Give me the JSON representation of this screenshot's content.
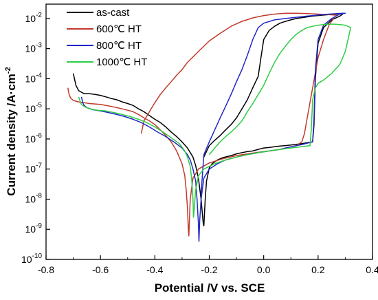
{
  "chart_data": {
    "type": "line",
    "title": "",
    "xlabel": "Potential /V vs. SCE",
    "ylabel": "Current density /A·cm",
    "ylabel_sup": "-2",
    "xlim": [
      -0.8,
      0.4
    ],
    "ylim": [
      1e-10,
      0.03
    ],
    "y_scale": "log",
    "grid": false,
    "legend_position": "top-left",
    "x_ticks": [
      "-0.8",
      "-0.6",
      "-0.4",
      "-0.2",
      "0.0",
      "0.2",
      "0.4"
    ],
    "x_tick_values": [
      -0.8,
      -0.6,
      -0.4,
      -0.2,
      0.0,
      0.2,
      0.4
    ],
    "y_ticks": [
      {
        "base": "10",
        "exp": "-10",
        "value": 1e-10
      },
      {
        "base": "10",
        "exp": "-9",
        "value": 1e-09
      },
      {
        "base": "10",
        "exp": "-8",
        "value": 1e-08
      },
      {
        "base": "10",
        "exp": "-7",
        "value": 1e-07
      },
      {
        "base": "10",
        "exp": "-6",
        "value": 1e-06
      },
      {
        "base": "10",
        "exp": "-5",
        "value": 1e-05
      },
      {
        "base": "10",
        "exp": "-4",
        "value": 0.0001
      },
      {
        "base": "10",
        "exp": "-3",
        "value": 0.001
      },
      {
        "base": "10",
        "exp": "-2",
        "value": 0.01
      }
    ],
    "series": [
      {
        "name": "as-cast",
        "color": "#000000",
        "x": [
          -0.7,
          -0.69,
          -0.68,
          -0.66,
          -0.64,
          -0.62,
          -0.6,
          -0.58,
          -0.56,
          -0.54,
          -0.52,
          -0.5,
          -0.48,
          -0.46,
          -0.44,
          -0.42,
          -0.4,
          -0.38,
          -0.36,
          -0.34,
          -0.32,
          -0.3,
          -0.28,
          -0.26,
          -0.25,
          -0.24,
          -0.23,
          -0.225,
          -0.222,
          -0.22,
          -0.218,
          -0.215,
          -0.21,
          -0.2,
          -0.19,
          -0.17,
          -0.15,
          -0.12,
          -0.1,
          -0.08,
          -0.06,
          -0.04,
          -0.02,
          0.0,
          0.02,
          0.04,
          0.06,
          0.08,
          0.1,
          0.12,
          0.14,
          0.16,
          0.18,
          0.185,
          0.19,
          0.2,
          0.22,
          0.25,
          0.28,
          0.29,
          0.28,
          0.26,
          0.24,
          0.22,
          0.2,
          0.18,
          0.15,
          0.12,
          0.1,
          0.08,
          0.06,
          0.04,
          0.02,
          0.0,
          -0.01,
          -0.02,
          -0.04,
          -0.06,
          -0.08,
          -0.1,
          -0.12,
          -0.14,
          -0.16,
          -0.18,
          -0.2,
          -0.22
        ],
        "y": [
          0.00015,
          6e-05,
          4e-05,
          3.2e-05,
          3.2e-05,
          3e-05,
          2.8e-05,
          2.5e-05,
          2.2e-05,
          2e-05,
          1.7e-05,
          1.5e-05,
          1.3e-05,
          1e-05,
          8e-06,
          6e-06,
          4.5e-06,
          3.5e-06,
          2.5e-06,
          1.7e-06,
          1.2e-06,
          8e-07,
          5e-07,
          2.5e-07,
          1.3e-07,
          5e-08,
          1e-08,
          3e-09,
          1.5e-09,
          1.3e-09,
          3e-09,
          1e-08,
          4e-08,
          1.1e-07,
          1.5e-07,
          2e-07,
          2.4e-07,
          2.8e-07,
          3.2e-07,
          3.5e-07,
          3.8e-07,
          4e-07,
          4.5e-07,
          5e-07,
          5.2e-07,
          5.5e-07,
          5.8e-07,
          6e-07,
          6.3e-07,
          6.6e-07,
          7e-07,
          7.5e-07,
          8e-07,
          3e-06,
          0.0001,
          0.0015,
          0.005,
          0.009,
          0.012,
          0.014,
          0.0145,
          0.014,
          0.0135,
          0.013,
          0.0125,
          0.012,
          0.011,
          0.01,
          0.009,
          0.008,
          0.007,
          0.0055,
          0.004,
          0.002,
          0.0005,
          0.00012,
          5e-05,
          2e-05,
          1e-05,
          5e-06,
          3e-06,
          2e-06,
          1.3e-06,
          9e-07,
          6e-07,
          2.5e-07
        ]
      },
      {
        "name": "600℃ HT",
        "color": "#c0392b",
        "x": [
          -0.72,
          -0.715,
          -0.71,
          -0.7,
          -0.68,
          -0.66,
          -0.64,
          -0.62,
          -0.6,
          -0.58,
          -0.56,
          -0.54,
          -0.52,
          -0.5,
          -0.48,
          -0.46,
          -0.44,
          -0.42,
          -0.4,
          -0.38,
          -0.36,
          -0.34,
          -0.32,
          -0.3,
          -0.29,
          -0.285,
          -0.28,
          -0.277,
          -0.275,
          -0.273,
          -0.27,
          -0.26,
          -0.24,
          -0.2,
          -0.15,
          -0.1,
          -0.05,
          0.0,
          0.02,
          0.04,
          0.06,
          0.08,
          0.1,
          0.12,
          0.14,
          0.15,
          0.16,
          0.18,
          0.2,
          0.22,
          0.24,
          0.26,
          0.27,
          0.26,
          0.24,
          0.2,
          0.16,
          0.12,
          0.08,
          0.04,
          0.0,
          -0.04,
          -0.08,
          -0.12,
          -0.16,
          -0.2,
          -0.24,
          -0.28,
          -0.3,
          -0.32,
          -0.34,
          -0.36,
          -0.38,
          -0.4,
          -0.42,
          -0.44,
          -0.45
        ],
        "y": [
          5e-05,
          3e-05,
          2.3e-05,
          1.9e-05,
          1.7e-05,
          1.6e-05,
          1.5e-05,
          1.45e-05,
          1.4e-05,
          1.3e-05,
          1.2e-05,
          1.1e-05,
          1e-05,
          9e-06,
          8e-06,
          6.5e-06,
          5e-06,
          4e-06,
          3e-06,
          2e-06,
          1.3e-06,
          8e-07,
          4e-07,
          1.5e-07,
          6e-08,
          2e-08,
          5e-09,
          1e-09,
          6e-10,
          2e-09,
          1e-08,
          5e-08,
          1e-07,
          1.6e-07,
          2.2e-07,
          2.8e-07,
          3.3e-07,
          3.8e-07,
          4e-07,
          4.2e-07,
          4.5e-07,
          5e-07,
          5.5e-07,
          6e-07,
          8e-07,
          1.5e-06,
          5e-06,
          5e-05,
          0.0005,
          0.002,
          0.006,
          0.011,
          0.013,
          0.013,
          0.0135,
          0.014,
          0.0145,
          0.015,
          0.015,
          0.014,
          0.0125,
          0.0105,
          0.008,
          0.0055,
          0.0032,
          0.0018,
          0.0008,
          0.00035,
          0.0002,
          0.00013,
          8e-05,
          5e-05,
          3e-05,
          1.6e-05,
          8e-06,
          4e-06,
          1.5e-06
        ]
      },
      {
        "name": "800℃ HT",
        "color": "#1f28c8",
        "x": [
          -0.67,
          -0.665,
          -0.66,
          -0.65,
          -0.63,
          -0.6,
          -0.57,
          -0.54,
          -0.51,
          -0.48,
          -0.45,
          -0.42,
          -0.39,
          -0.36,
          -0.33,
          -0.3,
          -0.28,
          -0.27,
          -0.26,
          -0.25,
          -0.245,
          -0.24,
          -0.238,
          -0.235,
          -0.23,
          -0.22,
          -0.2,
          -0.17,
          -0.14,
          -0.1,
          -0.06,
          -0.02,
          0.02,
          0.06,
          0.1,
          0.14,
          0.18,
          0.185,
          0.19,
          0.2,
          0.22,
          0.25,
          0.28,
          0.3,
          0.29,
          0.27,
          0.24,
          0.2,
          0.16,
          0.12,
          0.08,
          0.04,
          0.0,
          -0.02,
          -0.04,
          -0.06,
          -0.08,
          -0.1,
          -0.12,
          -0.14,
          -0.16,
          -0.18,
          -0.2,
          -0.22,
          -0.23
        ],
        "y": [
          2.5e-05,
          1.6e-05,
          1.3e-05,
          1.1e-05,
          9.5e-06,
          8.5e-06,
          7.5e-06,
          6.5e-06,
          5.5e-06,
          4.5e-06,
          3.5e-06,
          2.5e-06,
          1.7e-06,
          1.2e-06,
          8e-07,
          5e-07,
          3e-07,
          2e-07,
          1e-07,
          4e-08,
          1e-08,
          1.5e-09,
          4e-10,
          2e-09,
          1e-08,
          5e-08,
          1e-07,
          1.5e-07,
          2e-07,
          2.5e-07,
          3e-07,
          3.5e-07,
          4e-07,
          4.5e-07,
          5.5e-07,
          6.5e-07,
          8e-07,
          5e-06,
          0.0002,
          0.002,
          0.006,
          0.01,
          0.014,
          0.015,
          0.015,
          0.0145,
          0.014,
          0.013,
          0.012,
          0.011,
          0.01,
          0.009,
          0.007,
          0.005,
          0.002,
          0.0006,
          0.0002,
          8e-05,
          3e-05,
          1.2e-05,
          5e-06,
          2e-06,
          8e-07,
          3e-07,
          1.5e-08
        ]
      },
      {
        "name": "1000℃ HT",
        "color": "#2ecc40",
        "x": [
          -0.68,
          -0.675,
          -0.67,
          -0.66,
          -0.64,
          -0.61,
          -0.58,
          -0.55,
          -0.52,
          -0.49,
          -0.46,
          -0.43,
          -0.4,
          -0.37,
          -0.34,
          -0.31,
          -0.29,
          -0.28,
          -0.27,
          -0.265,
          -0.26,
          -0.258,
          -0.255,
          -0.25,
          -0.24,
          -0.22,
          -0.18,
          -0.14,
          -0.1,
          -0.06,
          -0.02,
          0.02,
          0.06,
          0.1,
          0.14,
          0.17,
          0.175,
          0.18,
          0.19,
          0.2,
          0.22,
          0.25,
          0.28,
          0.3,
          0.31,
          0.32,
          0.3,
          0.28,
          0.26,
          0.24,
          0.22,
          0.2,
          0.18,
          0.16,
          0.14,
          0.12,
          0.1,
          0.08,
          0.06,
          0.04,
          0.02,
          0.0,
          -0.02,
          -0.04,
          -0.06,
          -0.08,
          -0.1,
          -0.12,
          -0.14,
          -0.16,
          -0.18,
          -0.2
        ],
        "y": [
          2.5e-05,
          1.8e-05,
          1.4e-05,
          1.2e-05,
          1e-05,
          9e-06,
          8.5e-06,
          7.5e-06,
          6.5e-06,
          5.5e-06,
          4.5e-06,
          3.5e-06,
          2.5e-06,
          1.7e-06,
          1.1e-06,
          7e-07,
          4e-07,
          2.5e-07,
          1.2e-07,
          5e-08,
          1e-08,
          2.5e-09,
          5e-09,
          2e-08,
          6e-08,
          1e-07,
          1.5e-07,
          2e-07,
          2.5e-07,
          3e-07,
          3.5e-07,
          4e-07,
          4.5e-07,
          5e-07,
          5.5e-07,
          6e-07,
          2e-06,
          2e-05,
          5e-05,
          7e-05,
          9e-05,
          0.00015,
          0.0003,
          0.0008,
          0.002,
          0.005,
          0.006,
          0.0063,
          0.0065,
          0.0065,
          0.0063,
          0.006,
          0.0055,
          0.005,
          0.004,
          0.003,
          0.002,
          0.0012,
          0.0007,
          0.00035,
          0.00015,
          6e-05,
          3e-05,
          1.5e-05,
          8e-06,
          4e-06,
          2.5e-06,
          1.7e-06,
          1.2e-06,
          8e-07,
          5e-07,
          3e-07
        ]
      }
    ]
  }
}
